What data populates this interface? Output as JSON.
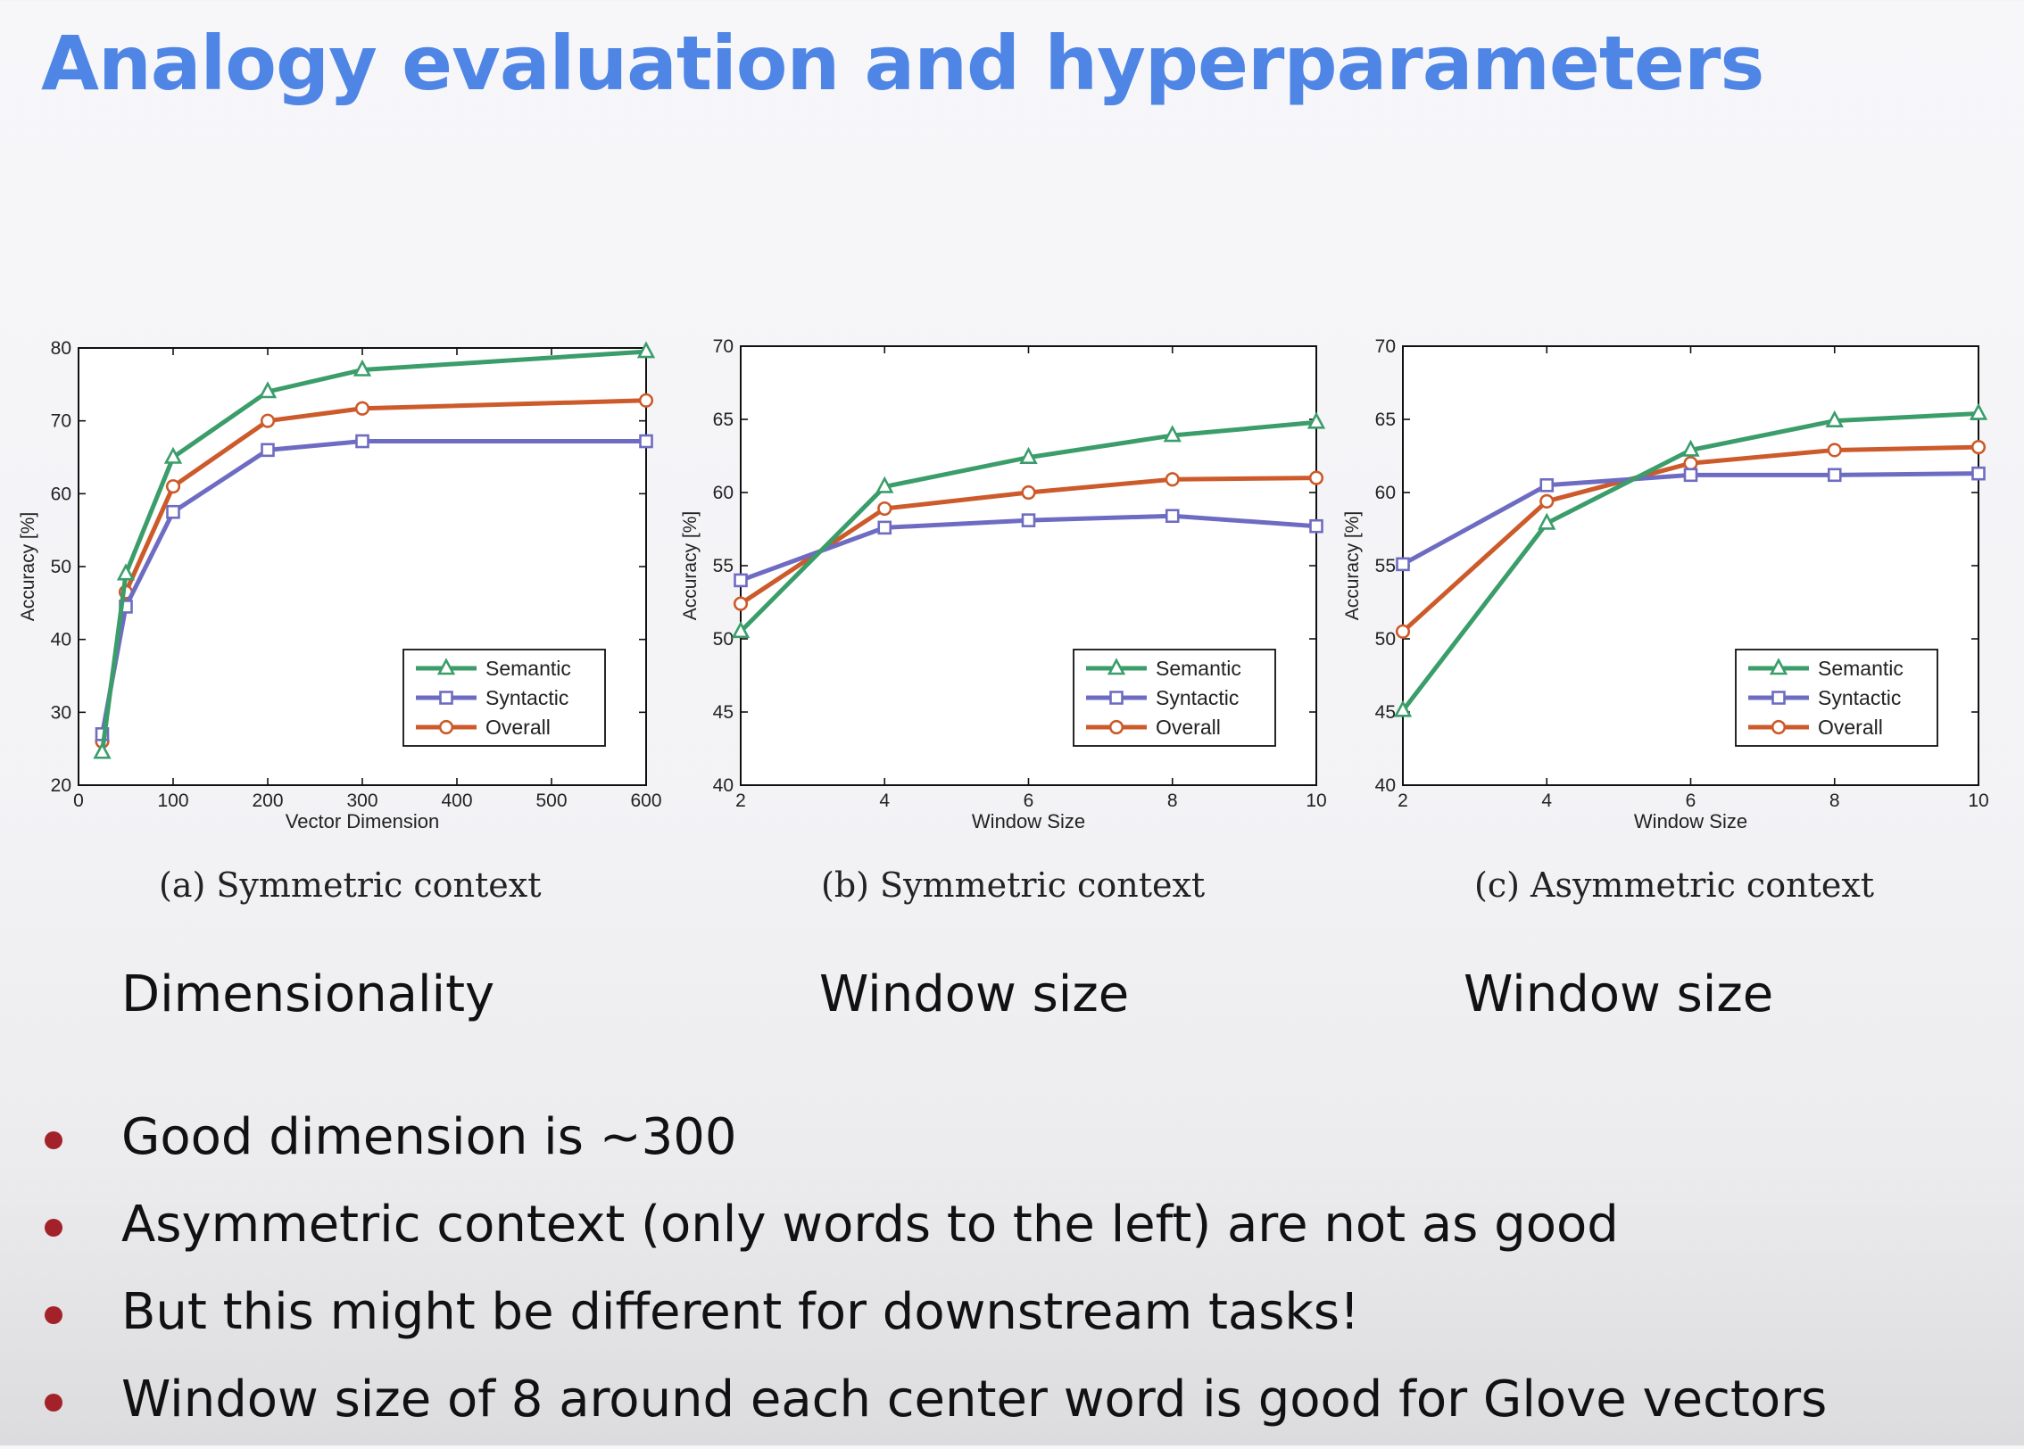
{
  "title": "Analogy evaluation and hyperparameters",
  "captions": [
    "(a) Symmetric context",
    "(b) Symmetric context",
    "(c) Asymmetric context"
  ],
  "subheadings": [
    "Dimensionality",
    "Window size",
    "Window size"
  ],
  "bullets": [
    "Good dimension is ~300",
    "Asymmetric context (only words to the left) are not as good",
    "But this might be different for downstream tasks!",
    "Window size of 8 around each center word is good for Glove vectors"
  ],
  "colors": {
    "title": "#4f86e6",
    "bullet": "#a3222a",
    "Semantic": "#3a9d6a",
    "Syntactic": "#6e6cc2",
    "Overall": "#cc5a2a"
  },
  "chart_data": [
    {
      "type": "line",
      "xlabel": "Vector Dimension",
      "ylabel": "Accuracy [%]",
      "xlim": [
        0,
        600
      ],
      "ylim": [
        20,
        80
      ],
      "xticks": [
        0,
        100,
        200,
        300,
        400,
        500,
        600
      ],
      "yticks": [
        20,
        30,
        40,
        50,
        60,
        70,
        80
      ],
      "x": [
        25,
        50,
        100,
        200,
        300,
        600
      ],
      "legend_position": "lower-right",
      "series": [
        {
          "name": "Semantic",
          "marker": "triangle",
          "values": [
            24.5,
            49,
            65,
            74,
            77,
            79.5
          ]
        },
        {
          "name": "Syntactic",
          "marker": "square",
          "values": [
            27,
            44.5,
            57.5,
            66,
            67.2,
            67.2
          ]
        },
        {
          "name": "Overall",
          "marker": "circle",
          "values": [
            26,
            46.5,
            61,
            70,
            71.7,
            72.8
          ]
        }
      ]
    },
    {
      "type": "line",
      "xlabel": "Window Size",
      "ylabel": "Accuracy [%]",
      "xlim": [
        2,
        10
      ],
      "ylim": [
        40,
        70
      ],
      "xticks": [
        2,
        4,
        6,
        8,
        10
      ],
      "yticks": [
        40,
        45,
        50,
        55,
        60,
        65,
        70
      ],
      "x": [
        2,
        4,
        6,
        8,
        10
      ],
      "legend_position": "lower-right",
      "series": [
        {
          "name": "Semantic",
          "marker": "triangle",
          "values": [
            50.5,
            60.4,
            62.4,
            63.9,
            64.8
          ]
        },
        {
          "name": "Syntactic",
          "marker": "square",
          "values": [
            54,
            57.6,
            58.1,
            58.4,
            57.7
          ]
        },
        {
          "name": "Overall",
          "marker": "circle",
          "values": [
            52.4,
            58.9,
            60,
            60.9,
            61
          ]
        }
      ]
    },
    {
      "type": "line",
      "xlabel": "Window Size",
      "ylabel": "Accuracy [%]",
      "xlim": [
        2,
        10
      ],
      "ylim": [
        40,
        70
      ],
      "xticks": [
        2,
        4,
        6,
        8,
        10
      ],
      "yticks": [
        40,
        45,
        50,
        55,
        60,
        65,
        70
      ],
      "x": [
        2,
        4,
        6,
        8,
        10
      ],
      "legend_position": "lower-right",
      "series": [
        {
          "name": "Semantic",
          "marker": "triangle",
          "values": [
            45.1,
            57.9,
            62.9,
            64.9,
            65.4
          ]
        },
        {
          "name": "Syntactic",
          "marker": "square",
          "values": [
            55.1,
            60.5,
            61.2,
            61.2,
            61.3
          ]
        },
        {
          "name": "Overall",
          "marker": "circle",
          "values": [
            50.5,
            59.4,
            62,
            62.9,
            63.1
          ]
        }
      ]
    }
  ]
}
